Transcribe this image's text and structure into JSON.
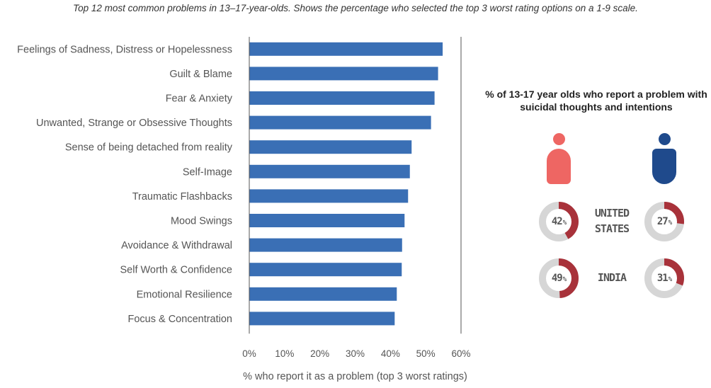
{
  "subtitle": "Top 12 most common problems in 13–17-year-olds. Shows the percentage who selected the top 3 worst rating options on a 1-9 scale.",
  "chart_data": {
    "type": "bar",
    "orientation": "horizontal",
    "categories": [
      "Feelings of Sadness, Distress or Hopelessness",
      "Guilt & Blame",
      "Fear & Anxiety",
      "Unwanted, Strange or Obsessive Thoughts",
      "Sense of being detached from reality",
      "Self-Image",
      "Traumatic Flashbacks",
      "Mood Swings",
      "Avoidance & Withdrawal",
      "Self Worth & Confidence",
      "Emotional Resilience",
      "Focus & Concentration"
    ],
    "values": [
      54.8,
      53.5,
      52.5,
      51.5,
      46.0,
      45.5,
      45.0,
      44.0,
      43.3,
      43.2,
      41.8,
      41.2
    ],
    "xlabel": "% who report it as a problem (top 3 worst ratings)",
    "xlim": [
      0,
      60
    ],
    "xticks": [
      "0%",
      "10%",
      "20%",
      "30%",
      "40%",
      "50%",
      "60%"
    ],
    "bar_color": "#3a6fb5",
    "grid": "x-axis reference lines at 0% and 60%"
  },
  "suicide_panel": {
    "title": "% of 13-17 year olds who report a problem with suicidal thoughts and intentions",
    "female_icon": "female-person-icon",
    "male_icon": "male-person-icon",
    "female_color": "#ee6663",
    "male_color": "#1f4a8c",
    "ring_color": "#a8323a",
    "ring_bg_color": "#d6d6d6",
    "rows": [
      {
        "country": "UNITED STATES",
        "female_value": 42,
        "male_value": 27
      },
      {
        "country": "INDIA",
        "female_value": 49,
        "male_value": 31
      }
    ],
    "pct_symbol": "%"
  }
}
